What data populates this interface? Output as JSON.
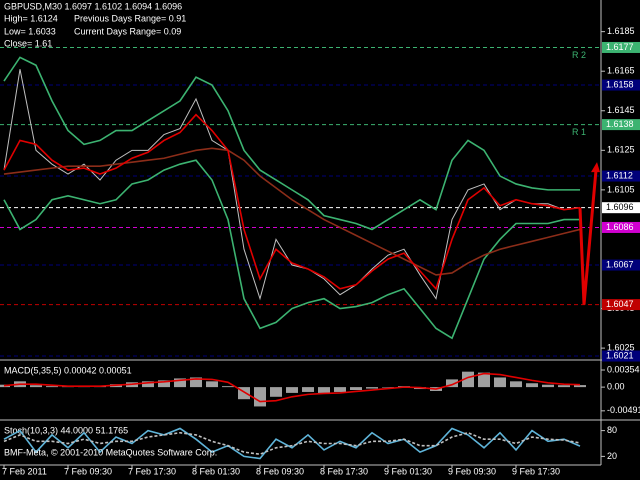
{
  "header": {
    "symbol": "GBPUSD,M30  1.6097 1.6102 1.6094 1.6096",
    "high": "High= 1.6124",
    "prev_range": "Previous Days Range= 0.91",
    "low": "Low= 1.6033",
    "cur_range": "Current Days Range= 0.09",
    "close": "Close= 1.61",
    "copyright": "BMF-Meta, © 2001-2010 MetaQuotes Software Corp."
  },
  "chart_data": [
    {
      "type": "line",
      "categories": [
        "7 Feb 2011",
        null,
        null,
        null,
        "7 Feb 09:30",
        null,
        null,
        null,
        "7 Feb 17:30",
        null,
        null,
        null,
        "8 Feb 01:30",
        null,
        null,
        null,
        "8 Feb 09:30",
        null,
        null,
        null,
        "8 Feb 17:30",
        null,
        null,
        null,
        "9 Feb 01:30",
        null,
        null,
        null,
        "9 Feb 09:30",
        null,
        null,
        null,
        "9 Feb 17:30",
        null,
        null,
        null,
        null
      ],
      "ylim": [
        1.602,
        1.6201
      ],
      "yticks": [
        1.6185,
        1.6165,
        1.6145,
        1.6125,
        1.6105,
        1.6045,
        1.6025
      ],
      "series": [
        {
          "color": "#c0c0c0",
          "values": [
            1.6115,
            1.6166,
            1.6125,
            1.6118,
            1.6113,
            1.6118,
            1.611,
            1.612,
            1.6125,
            1.6125,
            1.6133,
            1.6136,
            1.6151,
            1.613,
            1.6125,
            1.6075,
            1.605,
            1.608,
            1.6067,
            1.6065,
            1.606,
            1.6052,
            1.6057,
            1.6065,
            1.6072,
            1.6075,
            1.6062,
            1.605,
            1.609,
            1.6105,
            1.6108,
            1.6095,
            1.61,
            1.6098,
            1.6098,
            1.6095,
            1.6096
          ]
        },
        {
          "color": "#3cb371",
          "values": [
            1.616,
            1.6172,
            1.6168,
            1.615,
            1.6135,
            1.6128,
            1.613,
            1.6135,
            1.6135,
            1.614,
            1.6145,
            1.615,
            1.6162,
            1.6158,
            1.6145,
            1.6125,
            1.6115,
            1.611,
            1.6105,
            1.61,
            1.6092,
            1.609,
            1.6088,
            1.6085,
            1.609,
            1.6095,
            1.61,
            1.6095,
            1.612,
            1.613,
            1.6125,
            1.6112,
            1.6108,
            1.6106,
            1.6105,
            1.6105,
            1.6105
          ]
        },
        {
          "color": "#3cb371",
          "values": [
            1.61,
            1.6085,
            1.609,
            1.61,
            1.6102,
            1.61,
            1.6098,
            1.61,
            1.6108,
            1.611,
            1.6115,
            1.6118,
            1.612,
            1.611,
            1.609,
            1.605,
            1.6035,
            1.6038,
            1.6045,
            1.6048,
            1.605,
            1.6045,
            1.6046,
            1.6048,
            1.6052,
            1.6055,
            1.6045,
            1.6035,
            1.603,
            1.605,
            1.607,
            1.608,
            1.6088,
            1.6088,
            1.6088,
            1.609,
            1.609
          ]
        },
        {
          "color": "#8c2d19",
          "values": [
            1.6113,
            1.6114,
            1.6115,
            1.6116,
            1.6117,
            1.6117,
            1.6117,
            1.6118,
            1.6119,
            1.612,
            1.6121,
            1.6123,
            1.6125,
            1.6126,
            1.6125,
            1.612,
            1.6112,
            1.6106,
            1.61,
            1.6095,
            1.609,
            1.6086,
            1.6082,
            1.6078,
            1.6074,
            1.607,
            1.6066,
            1.6062,
            1.6063,
            1.6068,
            1.6072,
            1.6075,
            1.6077,
            1.6079,
            1.6081,
            1.6083,
            1.6085
          ]
        },
        {
          "color": "#e00000",
          "values": [
            1.6115,
            1.613,
            1.6128,
            1.612,
            1.6115,
            1.6116,
            1.6113,
            1.6116,
            1.6121,
            1.6124,
            1.613,
            1.6134,
            1.6143,
            1.6135,
            1.6125,
            1.6085,
            1.606,
            1.6075,
            1.6068,
            1.6065,
            1.6061,
            1.6055,
            1.6057,
            1.6064,
            1.607,
            1.6073,
            1.6064,
            1.6055,
            1.608,
            1.61,
            1.6106,
            1.6097,
            1.61,
            1.6098,
            1.6097,
            1.6095,
            1.6096
          ]
        }
      ],
      "forecast": {
        "color": "#e00000",
        "values": [
          1.6047,
          1.6118
        ]
      },
      "levels": [
        {
          "value": 1.6177,
          "color": "#3cb371",
          "name": "R 2"
        },
        {
          "value": 1.6158,
          "color": "#00007a"
        },
        {
          "value": 1.6138,
          "color": "#3cb371",
          "name": "R 1"
        },
        {
          "value": 1.6112,
          "color": "#00007a"
        },
        {
          "value": 1.6096,
          "color": "#ffffff"
        },
        {
          "value": 1.6086,
          "color": "#d000d0"
        },
        {
          "value": 1.6067,
          "color": "#00007a"
        },
        {
          "value": 1.6047,
          "color": "#c00000"
        },
        {
          "value": 1.6021,
          "color": "#00007a"
        }
      ]
    },
    {
      "type": "line",
      "title": "MACD(5,35,5) 0.00042 0.00051",
      "ylim": [
        -0.0066,
        0.0052
      ],
      "yticks": [
        0.00354,
        {
          "value": 0,
          "label": "0.00"
        },
        -0.00491
      ],
      "series": [
        {
          "color": "#a0a0a0",
          "style": "histogram",
          "values": [
            0.0005,
            0.0012,
            0.0004,
            0.0002,
            0.0001,
            0.0003,
            0.0002,
            0.0006,
            0.001,
            0.0012,
            0.0014,
            0.0018,
            0.002,
            0.0012,
            0.0002,
            -0.0025,
            -0.004,
            -0.002,
            -0.0012,
            -0.001,
            -0.0012,
            -0.001,
            -0.0006,
            -0.0003,
            0,
            0.0002,
            -0.0004,
            -0.0008,
            0.0016,
            0.0032,
            0.003,
            0.002,
            0.0012,
            0.0008,
            0.0005,
            0.0004,
            0.00042
          ]
        },
        {
          "color": "#e00000",
          "values": [
            0.0003,
            0.0006,
            0.0006,
            0.0004,
            0.0002,
            0.0002,
            0.0002,
            0.0004,
            0.0006,
            0.0009,
            0.0011,
            0.0014,
            0.0017,
            0.0016,
            0.001,
            -0.001,
            -0.003,
            -0.0028,
            -0.002,
            -0.0015,
            -0.0013,
            -0.0012,
            -0.0009,
            -0.0006,
            -0.0003,
            0,
            -0.0001,
            -0.0004,
            0.0005,
            0.002,
            0.0028,
            0.0026,
            0.002,
            0.0014,
            0.0009,
            0.0006,
            0.00051
          ]
        }
      ]
    },
    {
      "type": "line",
      "title": "Stoch(10,3,3) 44.0000 51.1765",
      "ylim": [
        0,
        100
      ],
      "yticks": [
        80,
        20
      ],
      "series": [
        {
          "color": "#5fb4d9",
          "values": [
            60,
            80,
            30,
            70,
            40,
            75,
            30,
            65,
            50,
            80,
            70,
            85,
            60,
            30,
            45,
            20,
            15,
            60,
            40,
            70,
            35,
            55,
            40,
            75,
            50,
            60,
            30,
            45,
            85,
            70,
            40,
            75,
            35,
            80,
            55,
            60,
            44
          ]
        },
        {
          "color": "#c0c0c0",
          "dash": true,
          "values": [
            55,
            70,
            55,
            55,
            50,
            60,
            50,
            55,
            55,
            65,
            70,
            75,
            70,
            55,
            45,
            30,
            25,
            40,
            45,
            55,
            50,
            50,
            45,
            55,
            55,
            60,
            45,
            45,
            65,
            75,
            60,
            60,
            50,
            65,
            60,
            58,
            51.1765
          ]
        }
      ]
    }
  ]
}
